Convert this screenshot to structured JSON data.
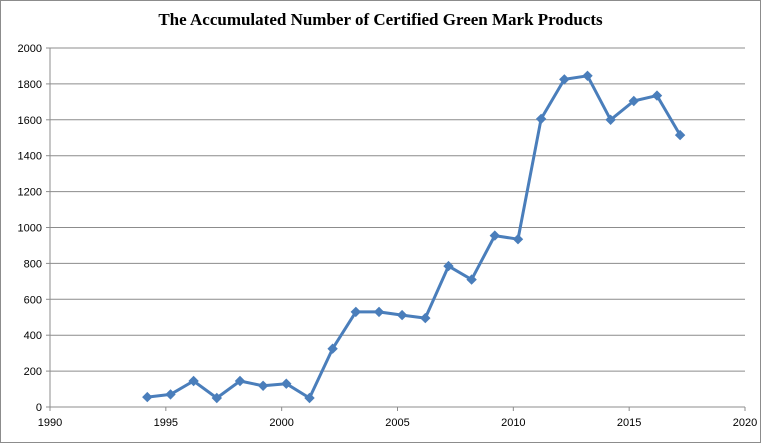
{
  "chart_data": {
    "type": "line",
    "title": "The Accumulated Number of Certified Green Mark Products",
    "xlabel": "",
    "ylabel": "",
    "xlim": [
      1990,
      2020
    ],
    "ylim": [
      0,
      2000
    ],
    "xticks": [
      1990,
      1995,
      2000,
      2005,
      2010,
      2015,
      2020
    ],
    "yticks": [
      0,
      200,
      400,
      600,
      800,
      1000,
      1200,
      1400,
      1600,
      1800,
      2000
    ],
    "grid": true,
    "legend": "none",
    "series": [
      {
        "color": "#4a7ebb",
        "marker": "diamond",
        "x": [
          1994.2,
          1995.2,
          1996.2,
          1997.2,
          1998.2,
          1999.2,
          2000.2,
          2001.2,
          2002.2,
          2003.2,
          2004.2,
          2005.2,
          2006.2,
          2007.2,
          2008.2,
          2009.2,
          2010.2,
          2011.2,
          2012.2,
          2013.2,
          2014.2,
          2015.2,
          2016.2,
          2017.2
        ],
        "values": [
          55,
          70,
          145,
          50,
          145,
          118,
          130,
          50,
          325,
          530,
          530,
          512,
          495,
          785,
          710,
          955,
          935,
          1605,
          1825,
          1845,
          1600,
          1705,
          1735,
          1515
        ]
      }
    ]
  }
}
